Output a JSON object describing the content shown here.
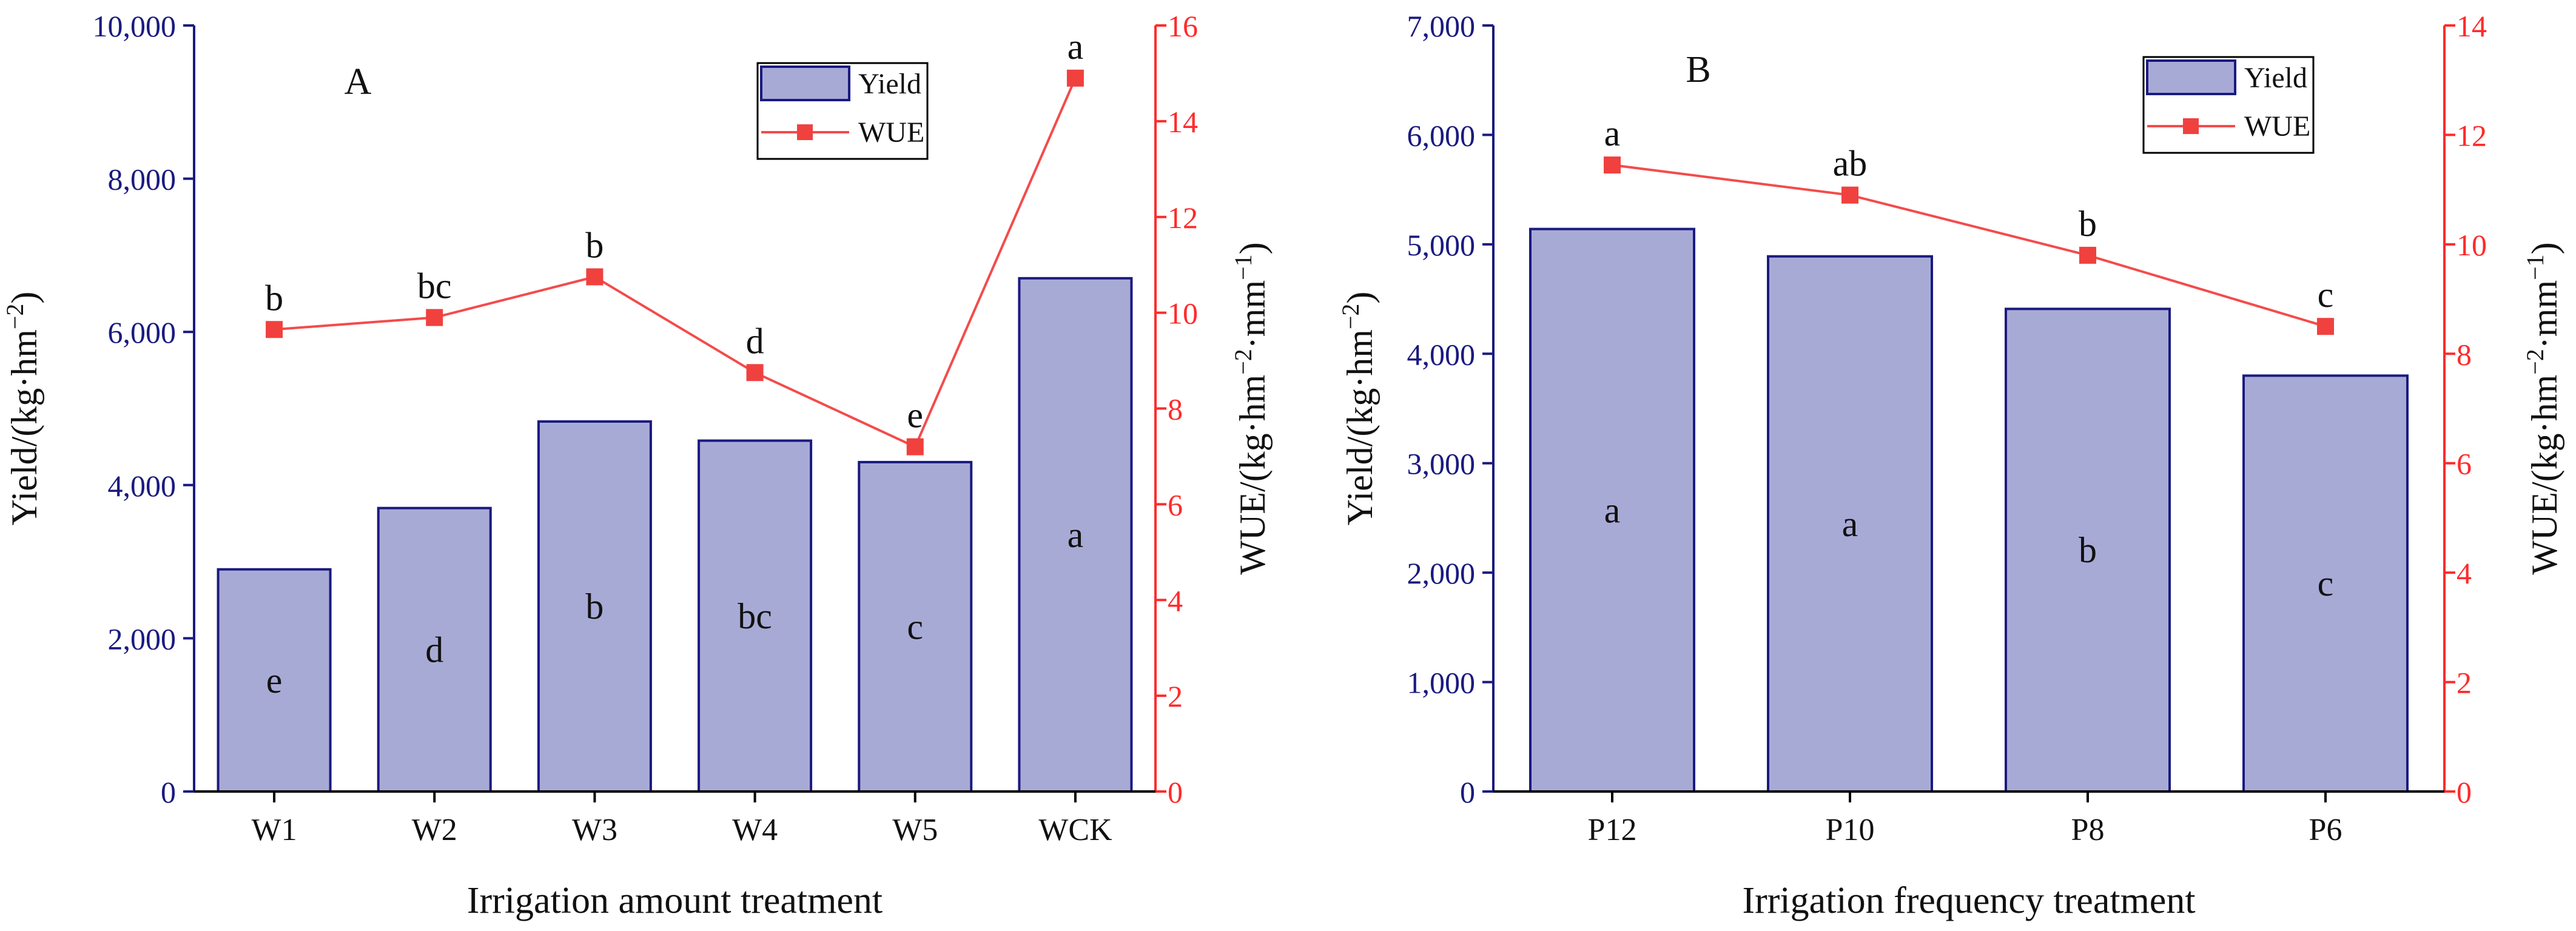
{
  "colors": {
    "bar_fill": "#A8AAD6",
    "bar_stroke": "#1A1A80",
    "left_axis": "#1A1A80",
    "right_axis": "#FF2B2B",
    "wue_line": "#F44B4B",
    "wue_marker": "#F0413F",
    "text": "#111111"
  },
  "chart_data": [
    {
      "type": "bar",
      "panel_label": "A",
      "xlabel": "Irrigation amount treatment",
      "ylabel_left": "Yield/(kg·hm",
      "ylabel_left_sup": "−2",
      "ylabel_left_end": ")",
      "ylabel_right": "WUE/(kg·hm",
      "ylabel_right_sup1": "−2",
      "ylabel_right_mid": "·mm",
      "ylabel_right_sup2": "−1",
      "ylabel_right_end": ")",
      "categories": [
        "W1",
        "W2",
        "W3",
        "W4",
        "W5",
        "WCK"
      ],
      "yield": [
        2900,
        3700,
        4830,
        4580,
        4300,
        6700
      ],
      "yield_letters": [
        "e",
        "d",
        "b",
        "bc",
        "c",
        "a"
      ],
      "wue": [
        9.65,
        9.9,
        10.75,
        8.75,
        7.2,
        14.9
      ],
      "wue_letters": [
        "b",
        "bc",
        "b",
        "d",
        "e",
        "a"
      ],
      "ylim_left": [
        0,
        10000
      ],
      "yticks_left": [
        "0",
        "2,000",
        "4,000",
        "6,000",
        "8,000",
        "10,000"
      ],
      "ylim_right": [
        0,
        16
      ],
      "yticks_right": [
        "0",
        "2",
        "4",
        "6",
        "8",
        "10",
        "12",
        "14",
        "16"
      ],
      "legend": {
        "position": "top-right",
        "yield_label": "Yield",
        "wue_label": "WUE"
      }
    },
    {
      "type": "bar",
      "panel_label": "B",
      "xlabel": "Irrigation frequency treatment",
      "ylabel_left": "Yield/(kg·hm",
      "ylabel_left_sup": "−2",
      "ylabel_left_end": ")",
      "ylabel_right": "WUE/(kg·hm",
      "ylabel_right_sup1": "−2",
      "ylabel_right_mid": "·mm",
      "ylabel_right_sup2": "−1",
      "ylabel_right_end": ")",
      "categories": [
        "P12",
        "P10",
        "P8",
        "P6"
      ],
      "yield": [
        5140,
        4890,
        4410,
        3800
      ],
      "yield_letters": [
        "a",
        "a",
        "b",
        "c"
      ],
      "wue": [
        11.45,
        10.9,
        9.8,
        8.5
      ],
      "wue_letters": [
        "a",
        "ab",
        "b",
        "c"
      ],
      "ylim_left": [
        0,
        7000
      ],
      "yticks_left": [
        "0",
        "1,000",
        "2,000",
        "3,000",
        "4,000",
        "5,000",
        "6,000",
        "7,000"
      ],
      "ylim_right": [
        0,
        14
      ],
      "yticks_right": [
        "0",
        "2",
        "4",
        "6",
        "8",
        "10",
        "12",
        "14"
      ],
      "legend": {
        "position": "top-right",
        "yield_label": "Yield",
        "wue_label": "WUE"
      }
    }
  ]
}
